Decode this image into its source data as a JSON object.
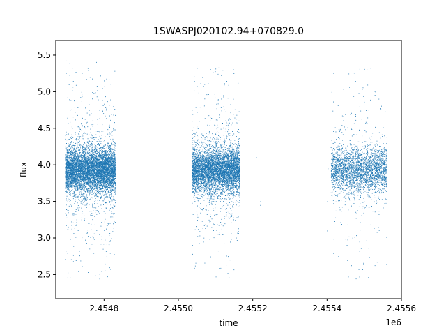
{
  "chart_data": {
    "type": "scatter",
    "title": "1SWASPJ020102.94+070829.0",
    "xlabel": "time",
    "ylabel": "flux",
    "x_offset_label": "1e6",
    "xlim": [
      2454670,
      2455600
    ],
    "ylim": [
      2.17,
      5.7
    ],
    "x_ticks": [
      2454800,
      2455000,
      2455200,
      2455400,
      2455600
    ],
    "x_tick_labels": [
      "2.4548",
      "2.4550",
      "2.4552",
      "2.4554",
      "2.4556"
    ],
    "y_ticks": [
      2.5,
      3.0,
      3.5,
      4.0,
      4.5,
      5.0,
      5.5
    ],
    "y_tick_labels": [
      "2.5",
      "3.0",
      "3.5",
      "4.0",
      "4.5",
      "5.0",
      "5.5"
    ],
    "grid": false,
    "legend": "none",
    "marker_color": "#1f77b4",
    "observing_seasons": [
      {
        "x_start": 2454695,
        "x_end": 2454830,
        "n_points": 7500,
        "y_center": 3.93,
        "y_spread": 0.42
      },
      {
        "x_start": 2455036,
        "x_end": 2455165,
        "n_points": 6000,
        "y_center": 3.93,
        "y_spread": 0.42
      },
      {
        "x_start": 2455410,
        "x_end": 2455560,
        "n_points": 3200,
        "y_center": 3.93,
        "y_spread": 0.42
      }
    ],
    "isolated_points": [
      {
        "x": 2455210,
        "y": 4.1
      },
      {
        "x": 2455220,
        "y": 3.62
      },
      {
        "x": 2455220,
        "y": 3.5
      },
      {
        "x": 2455220,
        "y": 3.45
      },
      {
        "x": 2455402,
        "y": 3.95
      },
      {
        "x": 2455400,
        "y": 3.1
      },
      {
        "x": 2455400,
        "y": 3.5
      }
    ]
  }
}
